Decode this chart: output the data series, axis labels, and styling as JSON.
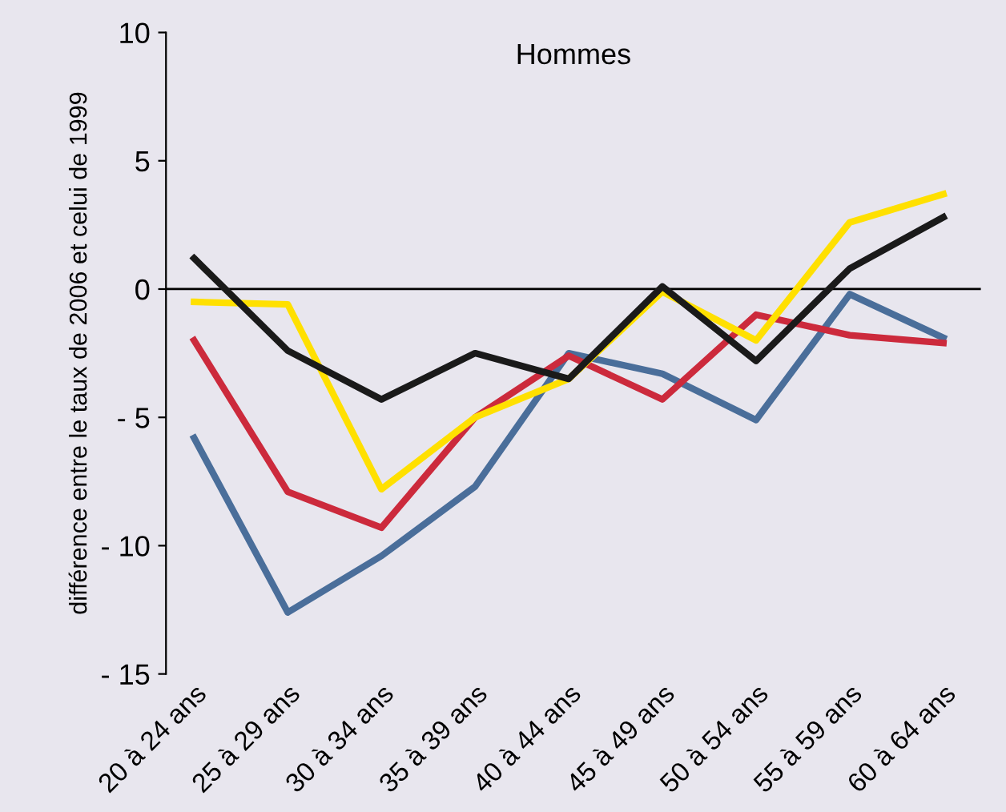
{
  "chart_data": {
    "type": "line",
    "title": "Hommes",
    "ylabel": "différence entre le taux de 2006 et celui de 1999",
    "categories": [
      "20 à 24 ans",
      "25 à 29 ans",
      "30 à 34 ans",
      "35 à 39 ans",
      "40 à 44 ans",
      "45 à 49 ans",
      "50 à 54 ans",
      "55 à 59 ans",
      "60 à 64 ans"
    ],
    "series": [
      {
        "color": "#4a6e9a",
        "values": [
          -5.8,
          -12.6,
          -10.4,
          -7.7,
          -2.5,
          -3.3,
          -5.1,
          -0.2,
          -1.9
        ]
      },
      {
        "color": "#cc2a3c",
        "values": [
          -2.0,
          -7.9,
          -9.3,
          -5.0,
          -2.6,
          -4.3,
          -1.0,
          -1.8,
          -2.1
        ]
      },
      {
        "color": "#ffe000",
        "values": [
          -0.5,
          -0.6,
          -7.8,
          -5.0,
          -3.5,
          -0.1,
          -2.0,
          2.6,
          3.7
        ]
      },
      {
        "color": "#1a1a1a",
        "values": [
          1.2,
          -2.4,
          -4.3,
          -2.5,
          -3.5,
          0.1,
          -2.8,
          0.8,
          2.8
        ]
      }
    ],
    "ylim": [
      -15,
      10
    ],
    "yticks": [
      {
        "value": -15,
        "label": "- 15"
      },
      {
        "value": -10,
        "label": "- 10"
      },
      {
        "value": -5,
        "label": "- 5"
      },
      0,
      5,
      10
    ],
    "ref_lines": [
      {
        "axis": "y",
        "value": 0,
        "color": "#000000"
      }
    ],
    "marker": "none",
    "line_style": "solid"
  }
}
